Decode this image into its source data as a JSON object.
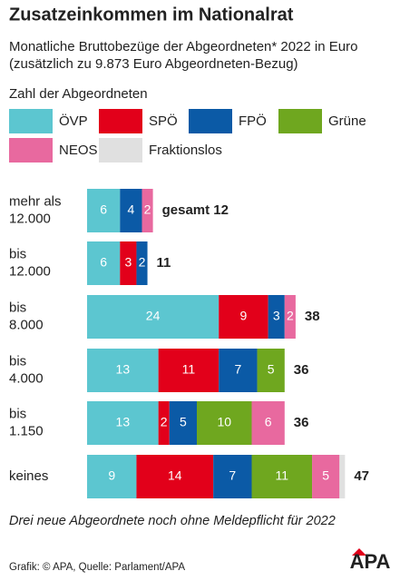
{
  "chart_data": {
    "type": "stacked-bar",
    "title": "Zusatzeinkommen im Nationalrat",
    "subtitle": [
      "Monatliche Bruttobezüge der Abgeordneten* 2022 in Euro",
      "(zusätzlich zu 9.873 Euro Abgeordneten-Bezug)"
    ],
    "legend_title": "Zahl der Abgeordneten",
    "categories": [
      [
        "mehr als",
        "12.000"
      ],
      [
        "bis",
        "12.000"
      ],
      [
        "bis",
        "8.000"
      ],
      [
        "bis",
        "4.000"
      ],
      [
        "bis",
        "1.150"
      ],
      [
        "keines"
      ]
    ],
    "series": [
      {
        "name": "ÖVP",
        "color": "#5cc6d0",
        "values": [
          6,
          6,
          24,
          13,
          13,
          9
        ]
      },
      {
        "name": "SPÖ",
        "color": "#e2001a",
        "values": [
          0,
          3,
          9,
          11,
          2,
          14
        ]
      },
      {
        "name": "FPÖ",
        "color": "#0b5aa6",
        "values": [
          4,
          2,
          3,
          7,
          5,
          7
        ]
      },
      {
        "name": "Grüne",
        "color": "#6fa71f",
        "values": [
          0,
          0,
          0,
          5,
          10,
          11
        ]
      },
      {
        "name": "NEOS",
        "color": "#e8699f",
        "values": [
          2,
          0,
          2,
          0,
          6,
          5
        ]
      },
      {
        "name": "Fraktionslos",
        "color": "#e0e0e0",
        "values": [
          0,
          0,
          0,
          0,
          0,
          1
        ],
        "show_labels": false
      }
    ],
    "totals": [
      "gesamt 12",
      "11",
      "38",
      "36",
      "36",
      "47"
    ],
    "footnote": "Drei neue Abgeordnete noch ohne Meldepflicht für 2022",
    "source": "Grafik: © APA, Quelle: Parlament/APA",
    "logo": "APA"
  }
}
